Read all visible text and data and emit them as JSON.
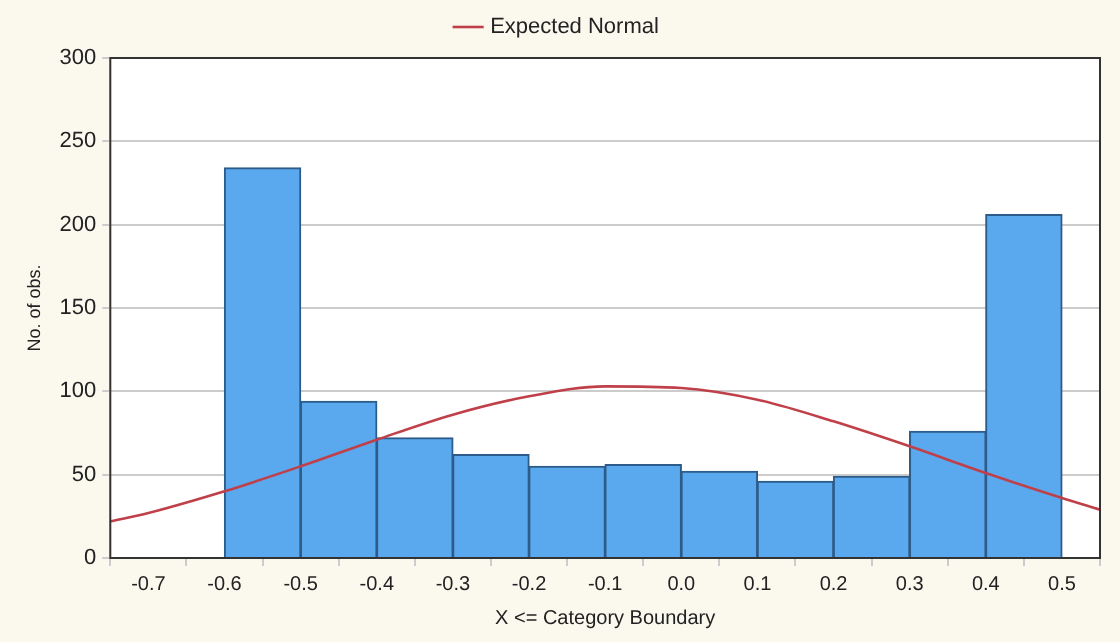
{
  "chart_data": {
    "type": "histogram",
    "xlabel": "X <= Category Boundary",
    "ylabel": "No. of obs.",
    "bins": [
      -0.6,
      -0.5,
      -0.4,
      -0.3,
      -0.2,
      -0.1,
      0.0,
      0.1,
      0.2,
      0.3,
      0.4,
      0.5
    ],
    "values": [
      234,
      94,
      72,
      62,
      55,
      56,
      52,
      46,
      49,
      76,
      206
    ],
    "color": "#5aa8ee",
    "series": [
      {
        "name": "Expected Normal",
        "type": "line",
        "color": "#c0404a",
        "x": [
          -0.75,
          -0.7,
          -0.6,
          -0.5,
          -0.4,
          -0.3,
          -0.2,
          -0.1,
          0.0,
          0.1,
          0.2,
          0.3,
          0.4,
          0.5,
          0.55
        ],
        "values": [
          22,
          27,
          40,
          55,
          71,
          86,
          97,
          103,
          102,
          95,
          82,
          67,
          51,
          36,
          29
        ]
      }
    ],
    "xlim": [
      -0.75,
      0.55
    ],
    "xticks": [
      -0.7,
      -0.6,
      -0.5,
      -0.4,
      -0.3,
      -0.2,
      -0.1,
      {
        "value": 0,
        "label": "0.0"
      },
      0.1,
      0.2,
      0.3,
      0.4,
      0.5
    ],
    "ylim": [
      0,
      300
    ],
    "yticks": [
      0,
      50,
      100,
      150,
      200,
      250,
      300
    ],
    "grid": "y",
    "legend": "top",
    "marker": "none",
    "line_style": "solid"
  }
}
